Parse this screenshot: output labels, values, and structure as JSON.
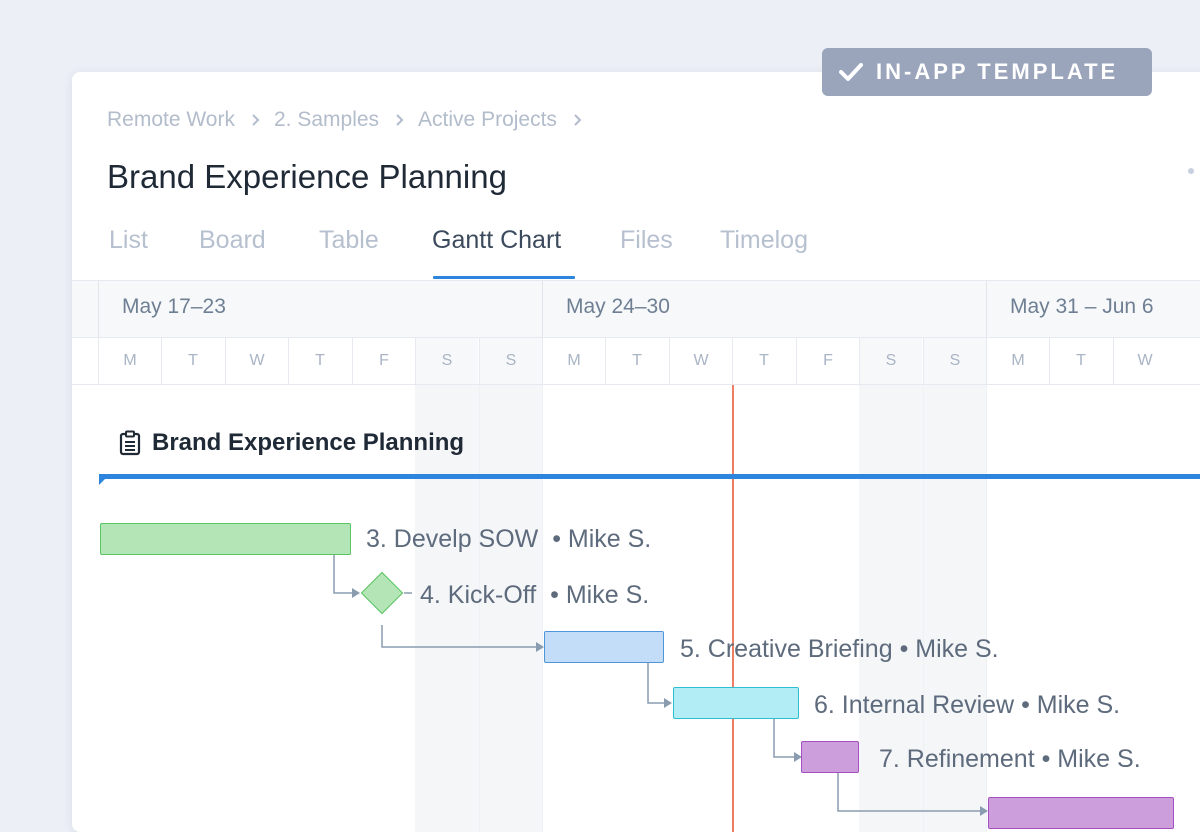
{
  "badge": {
    "label": "IN-APP TEMPLATE",
    "icon": "check-icon"
  },
  "breadcrumb": [
    "Remote Work",
    "2. Samples",
    "Active Projects"
  ],
  "page_title": "Brand Experience Planning",
  "tabs": [
    {
      "label": "List"
    },
    {
      "label": "Board"
    },
    {
      "label": "Table"
    },
    {
      "label": "Gantt Chart",
      "active": true
    },
    {
      "label": "Files"
    },
    {
      "label": "Timelog"
    }
  ],
  "gantt": {
    "weeks": [
      "May 17–23",
      "May 24–30",
      "May 31 – Jun 6"
    ],
    "days": [
      "M",
      "T",
      "W",
      "T",
      "F",
      "S",
      "S",
      "M",
      "T",
      "W",
      "T",
      "F",
      "S",
      "S",
      "M",
      "T",
      "W"
    ],
    "project": {
      "name": "Brand Experience Planning",
      "icon": "clipboard-icon",
      "color": "#2e85de"
    },
    "today_marker_color": "#ef7d62",
    "tasks": [
      {
        "name": "3. Develp SOW",
        "assignee": "• Mike S.",
        "type": "bar",
        "color": "#b4e5b6",
        "border": "#5bc463"
      },
      {
        "name": "4. Kick-Off",
        "assignee": "• Mike S.",
        "type": "milestone",
        "color": "#b4e5b6",
        "border": "#5bc463"
      },
      {
        "name": "5. Creative Briefing",
        "assignee": "• Mike S.",
        "type": "bar",
        "color": "#c3dcf7",
        "border": "#4f95d8"
      },
      {
        "name": "6. Internal Review",
        "assignee": "• Mike S.",
        "type": "bar",
        "color": "#b2ecf4",
        "border": "#2fbdd0"
      },
      {
        "name": "7. Refinement",
        "assignee": "• Mike S.",
        "type": "bar",
        "color": "#cc9fdc",
        "border": "#a450c0"
      },
      {
        "name": "",
        "assignee": "",
        "type": "bar",
        "color": "#cc9fdc",
        "border": "#a450c0"
      }
    ]
  }
}
